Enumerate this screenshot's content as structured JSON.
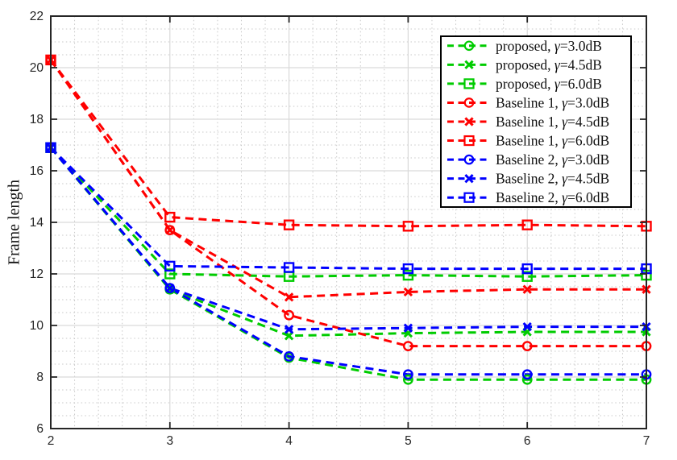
{
  "chart_data": {
    "type": "line",
    "title": "",
    "xlabel": "",
    "ylabel": "Frame length",
    "xlim": [
      2,
      7
    ],
    "ylim": [
      6,
      22
    ],
    "xticks": [
      2,
      3,
      4,
      5,
      6,
      7
    ],
    "yticks": [
      6,
      8,
      10,
      12,
      14,
      16,
      18,
      20,
      22
    ],
    "x_minor_step": 0.2,
    "y_minor_step": 0.5,
    "grid": "major-solid-and-minor-dotted",
    "legend_position": "top-right",
    "line_style": "dashed",
    "x": [
      2,
      3,
      4,
      5,
      6,
      7
    ],
    "series": [
      {
        "label": "proposed, γ=3.0dB",
        "group": "proposed",
        "gamma": "3.0dB",
        "color": "#00cc00",
        "marker": "circle",
        "values": [
          16.9,
          11.4,
          8.75,
          7.9,
          7.9,
          7.9
        ]
      },
      {
        "label": "proposed, γ=4.5dB",
        "group": "proposed",
        "gamma": "4.5dB",
        "color": "#00cc00",
        "marker": "x",
        "values": [
          16.9,
          11.4,
          9.6,
          9.7,
          9.75,
          9.75
        ]
      },
      {
        "label": "proposed, γ=6.0dB",
        "group": "proposed",
        "gamma": "6.0dB",
        "color": "#00cc00",
        "marker": "square",
        "values": [
          16.9,
          12.0,
          11.9,
          11.95,
          11.9,
          11.95
        ]
      },
      {
        "label": "Baseline 1, γ=3.0dB",
        "group": "Baseline 1",
        "gamma": "3.0dB",
        "color": "#ff0000",
        "marker": "circle",
        "values": [
          20.3,
          13.7,
          10.4,
          9.2,
          9.2,
          9.2
        ]
      },
      {
        "label": "Baseline 1, γ=4.5dB",
        "group": "Baseline 1",
        "gamma": "4.5dB",
        "color": "#ff0000",
        "marker": "x",
        "values": [
          20.3,
          13.7,
          11.1,
          11.3,
          11.4,
          11.4
        ]
      },
      {
        "label": "Baseline 1, γ=6.0dB",
        "group": "Baseline 1",
        "gamma": "6.0dB",
        "color": "#ff0000",
        "marker": "square",
        "values": [
          20.3,
          14.2,
          13.9,
          13.85,
          13.9,
          13.85
        ]
      },
      {
        "label": "Baseline 2, γ=3.0dB",
        "group": "Baseline 2",
        "gamma": "3.0dB",
        "color": "#0000ff",
        "marker": "circle",
        "values": [
          16.9,
          11.45,
          8.8,
          8.1,
          8.1,
          8.1
        ]
      },
      {
        "label": "Baseline 2, γ=4.5dB",
        "group": "Baseline 2",
        "gamma": "4.5dB",
        "color": "#0000ff",
        "marker": "x",
        "values": [
          16.9,
          11.45,
          9.85,
          9.9,
          9.95,
          9.95
        ]
      },
      {
        "label": "Baseline 2, γ=6.0dB",
        "group": "Baseline 2",
        "gamma": "6.0dB",
        "color": "#0000ff",
        "marker": "square",
        "values": [
          16.9,
          12.3,
          12.25,
          12.2,
          12.2,
          12.2
        ]
      }
    ]
  },
  "colors": {
    "background": "#ffffff",
    "axis": "#262626",
    "tick_label": "#262626",
    "major_grid": "#d9d9d9",
    "minor_grid": "#c9c9c9",
    "legend_border": "#000000",
    "legend_background": "#ffffff",
    "series_green": "#00cc00",
    "series_red": "#ff0000",
    "series_blue": "#0000ff"
  }
}
